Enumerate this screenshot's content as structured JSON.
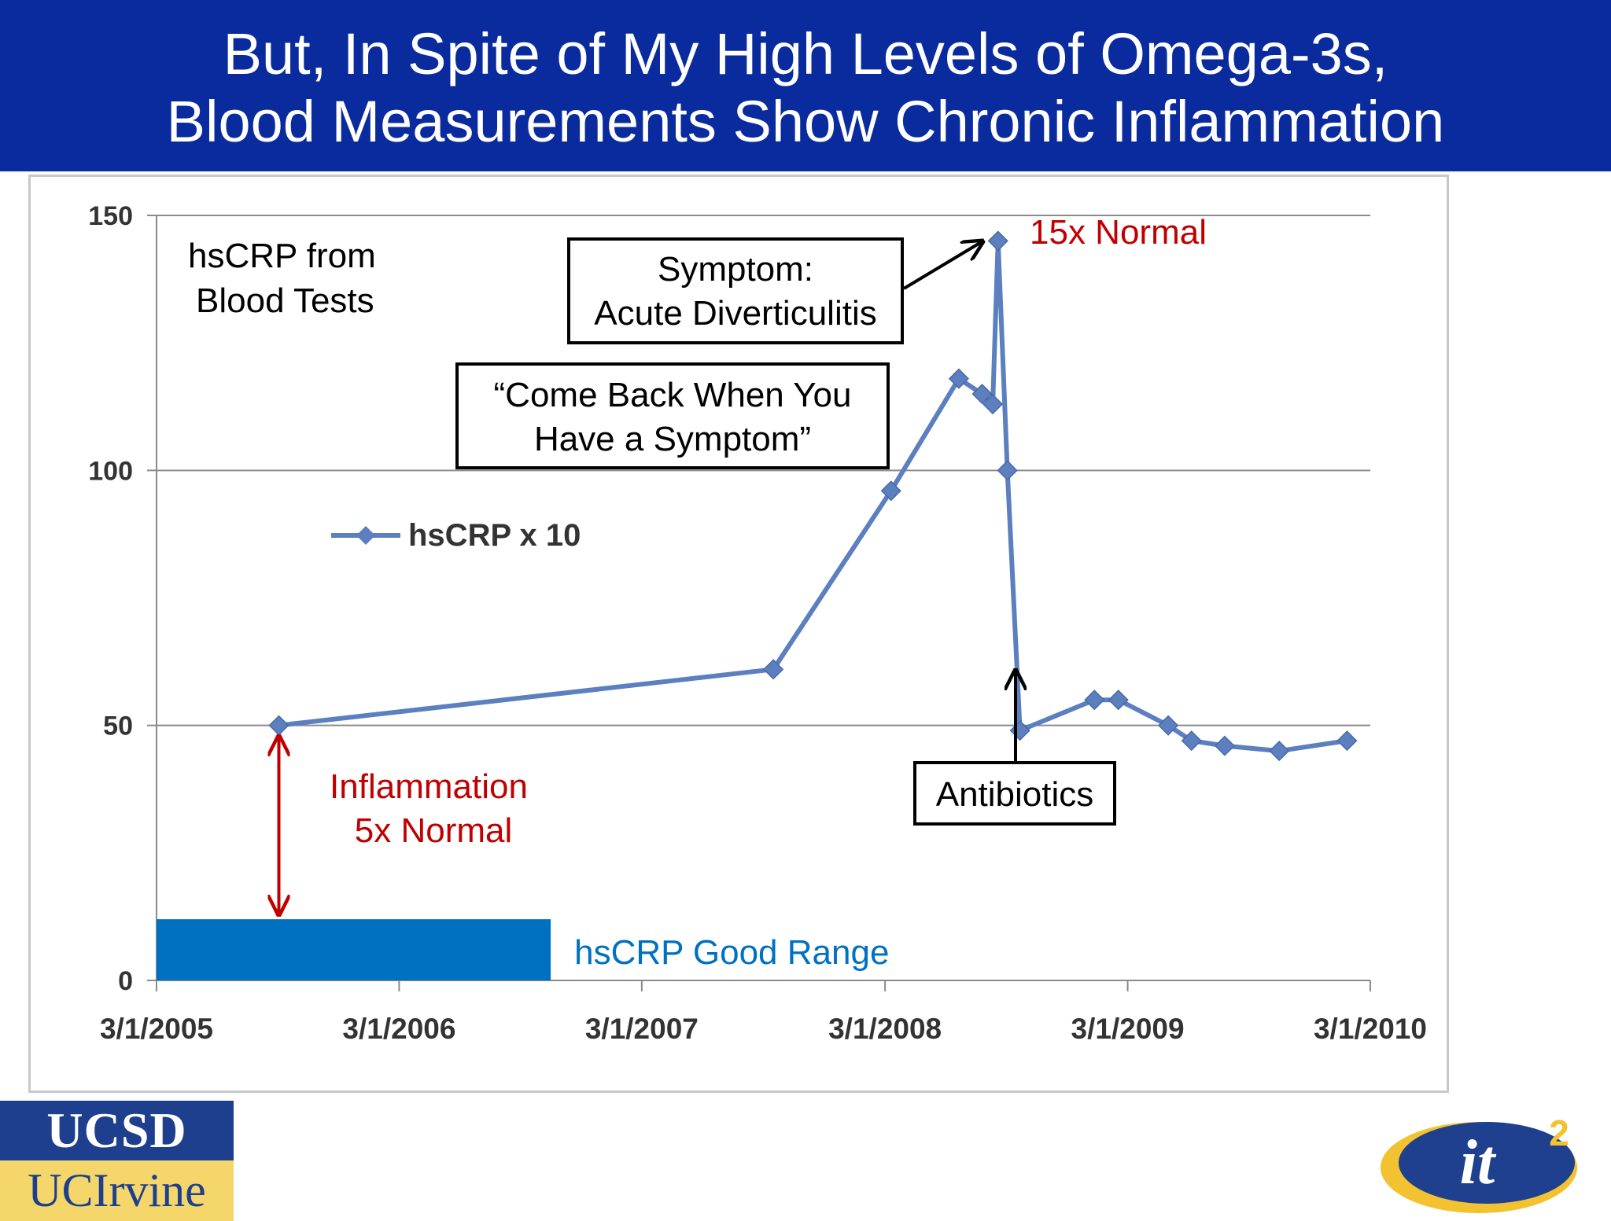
{
  "slide": {
    "title_line1": "But, In Spite of My High Levels of Omega-3s,",
    "title_line2": "Blood Measurements Show Chronic Inflammation",
    "logos": {
      "ucsd": "UCSD",
      "ucirvine": "UCIrvine",
      "it2": "it",
      "it2_superscript": "2"
    }
  },
  "chart_data": {
    "type": "line",
    "title": "",
    "xlabel": "",
    "ylabel": "",
    "ylim": [
      0,
      150
    ],
    "yticks": [
      0,
      50,
      100,
      150
    ],
    "xlim": [
      "2005-03-01",
      "2010-03-01"
    ],
    "xticks": [
      "3/1/2005",
      "3/1/2006",
      "3/1/2007",
      "3/1/2008",
      "3/1/2009",
      "3/1/2010"
    ],
    "grid": "horizontal",
    "legend": "left-middle",
    "series": [
      {
        "name": "hsCRP x 10",
        "color": "#5b7fbf",
        "points": [
          {
            "x": "2005-09-01",
            "y": 50
          },
          {
            "x": "2007-09-15",
            "y": 61
          },
          {
            "x": "2008-03-10",
            "y": 96
          },
          {
            "x": "2008-06-20",
            "y": 118
          },
          {
            "x": "2008-07-25",
            "y": 115
          },
          {
            "x": "2008-08-10",
            "y": 113
          },
          {
            "x": "2008-08-18",
            "y": 145
          },
          {
            "x": "2008-09-01",
            "y": 100
          },
          {
            "x": "2008-09-20",
            "y": 49
          },
          {
            "x": "2009-01-10",
            "y": 55
          },
          {
            "x": "2009-02-15",
            "y": 55
          },
          {
            "x": "2009-05-01",
            "y": 50
          },
          {
            "x": "2009-06-05",
            "y": 47
          },
          {
            "x": "2009-07-25",
            "y": 46
          },
          {
            "x": "2009-10-15",
            "y": 45
          },
          {
            "x": "2010-01-25",
            "y": 47
          }
        ]
      }
    ],
    "good_range": {
      "label": "hsCRP Good Range",
      "x_end": "2006-10-15",
      "y_max": 12,
      "color": "#0070c0"
    },
    "annotations": {
      "hscrp_source_line1": "hsCRP from",
      "hscrp_source_line2": "Blood Tests",
      "symptom_line1": "Symptom:",
      "symptom_line2": "Acute Diverticulitis",
      "come_back_line1": "“Come Back When You",
      "come_back_line2": "Have a Symptom”",
      "peak_label": "15x Normal",
      "inflammation_line1": "Inflammation",
      "inflammation_line2": "5x Normal",
      "antibiotics": "Antibiotics",
      "red_color": "#c00000",
      "blue_color": "#0070c0"
    }
  }
}
